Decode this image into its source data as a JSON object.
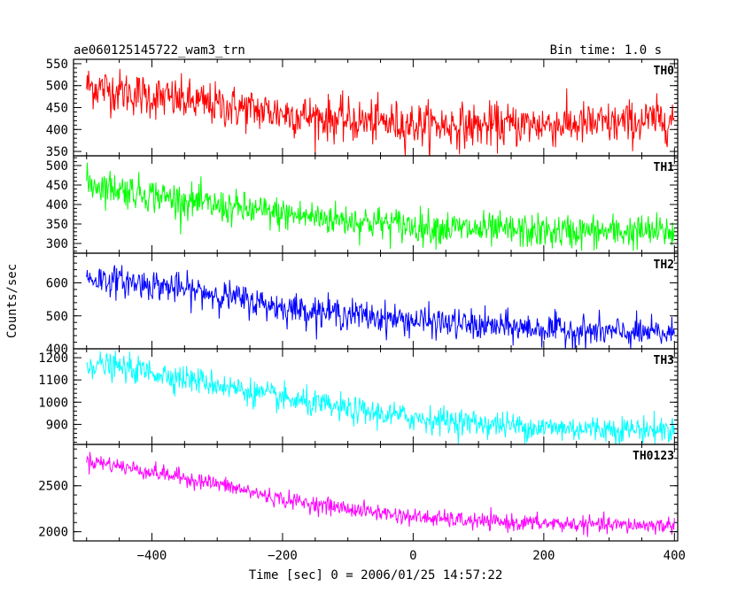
{
  "title_left": "ae060125145722_wam3_trn",
  "title_right": "Bin time: 1.0 s",
  "xlabel": "Time [sec] 0 = 2006/01/25 14:57:22",
  "ylabel": "Counts/sec",
  "chart_data": [
    {
      "type": "line",
      "name": "TH0",
      "color": "#ff0000",
      "xlim": [
        -520,
        405
      ],
      "ylim": [
        340,
        560
      ],
      "yticks": [
        350,
        400,
        450,
        500,
        550
      ],
      "x_range": [
        -500,
        400
      ],
      "trend": [
        [
          -500,
          500
        ],
        [
          -400,
          475
        ],
        [
          -300,
          455
        ],
        [
          -200,
          437
        ],
        [
          -100,
          420
        ],
        [
          0,
          412
        ],
        [
          100,
          408
        ],
        [
          200,
          412
        ],
        [
          300,
          412
        ],
        [
          400,
          425
        ]
      ],
      "noise_sigma": 25
    },
    {
      "type": "line",
      "name": "TH1",
      "color": "#00ff00",
      "xlim": [
        -520,
        405
      ],
      "ylim": [
        275,
        525
      ],
      "yticks": [
        300,
        350,
        400,
        450,
        500
      ],
      "x_range": [
        -500,
        400
      ],
      "trend": [
        [
          -500,
          455
        ],
        [
          -400,
          425
        ],
        [
          -300,
          395
        ],
        [
          -200,
          375
        ],
        [
          -100,
          360
        ],
        [
          0,
          345
        ],
        [
          100,
          335
        ],
        [
          200,
          330
        ],
        [
          300,
          330
        ],
        [
          400,
          330
        ]
      ],
      "noise_sigma": 22
    },
    {
      "type": "line",
      "name": "TH2",
      "color": "#0000ff",
      "xlim": [
        -520,
        405
      ],
      "ylim": [
        400,
        690
      ],
      "yticks": [
        400,
        500,
        600
      ],
      "x_range": [
        -500,
        400
      ],
      "trend": [
        [
          -500,
          615
        ],
        [
          -400,
          595
        ],
        [
          -300,
          565
        ],
        [
          -200,
          525
        ],
        [
          -100,
          505
        ],
        [
          0,
          485
        ],
        [
          100,
          470
        ],
        [
          200,
          460
        ],
        [
          300,
          450
        ],
        [
          400,
          445
        ]
      ],
      "noise_sigma": 23
    },
    {
      "type": "line",
      "name": "TH3",
      "color": "#00ffff",
      "xlim": [
        -520,
        405
      ],
      "ylim": [
        810,
        1240
      ],
      "yticks": [
        900,
        1000,
        1100,
        1200
      ],
      "x_range": [
        -500,
        400
      ],
      "trend": [
        [
          -500,
          1175
        ],
        [
          -400,
          1135
        ],
        [
          -300,
          1080
        ],
        [
          -200,
          1015
        ],
        [
          -100,
          965
        ],
        [
          0,
          930
        ],
        [
          100,
          905
        ],
        [
          200,
          885
        ],
        [
          300,
          880
        ],
        [
          400,
          875
        ]
      ],
      "noise_sigma": 30
    },
    {
      "type": "line",
      "name": "TH0123",
      "color": "#ff00ff",
      "xlim": [
        -520,
        405
      ],
      "ylim": [
        1900,
        2950
      ],
      "yticks": [
        2000,
        2500
      ],
      "x_range": [
        -500,
        400
      ],
      "trend": [
        [
          -500,
          2780
        ],
        [
          -400,
          2650
        ],
        [
          -300,
          2520
        ],
        [
          -200,
          2350
        ],
        [
          -100,
          2250
        ],
        [
          0,
          2160
        ],
        [
          100,
          2110
        ],
        [
          200,
          2090
        ],
        [
          300,
          2070
        ],
        [
          400,
          2070
        ]
      ],
      "noise_sigma": 45
    }
  ],
  "xticks": [
    -400,
    -200,
    0,
    200,
    400
  ]
}
